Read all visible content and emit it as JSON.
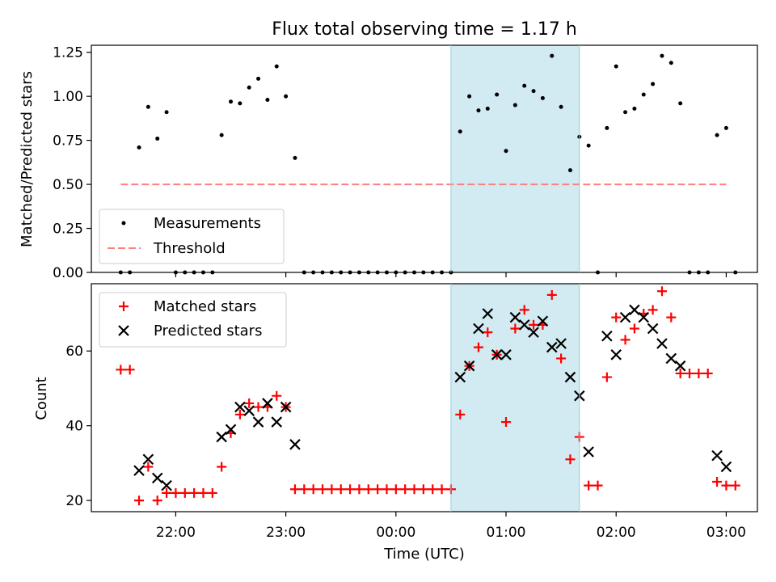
{
  "figure": {
    "title": "Flux total observing time = 1.17 h"
  },
  "colors": {
    "measurements": "#000000",
    "threshold": "#ff7f7f",
    "matched": "#ff0000",
    "predicted": "#000000",
    "highlight": "#add8e6"
  },
  "chart_data": [
    {
      "type": "scatter",
      "panel": "top",
      "title": "Flux total observing time = 1.17 h",
      "xlabel": "",
      "ylabel": "Matched/Predicted stars",
      "xlim": [
        "21:14",
        "03:17"
      ],
      "ylim": [
        0,
        1.29
      ],
      "x_ticks": [
        "22:00",
        "23:00",
        "00:00",
        "01:00",
        "02:00",
        "03:00"
      ],
      "y_ticks": [
        "0.00",
        "0.25",
        "0.50",
        "0.75",
        "1.00",
        "1.25"
      ],
      "highlight_span": [
        "00:30",
        "01:40"
      ],
      "legend": {
        "position": "lower-left",
        "entries": [
          "Measurements",
          "Threshold"
        ]
      },
      "threshold": 0.5,
      "threshold_range": [
        "21:30",
        "03:00"
      ],
      "series": [
        {
          "name": "Measurements",
          "points": [
            [
              "21:30",
              0
            ],
            [
              "21:35",
              0
            ],
            [
              "21:40",
              0.71
            ],
            [
              "21:45",
              0.94
            ],
            [
              "21:50",
              0.76
            ],
            [
              "21:55",
              0.91
            ],
            [
              "22:00",
              0
            ],
            [
              "22:05",
              0
            ],
            [
              "22:10",
              0
            ],
            [
              "22:15",
              0
            ],
            [
              "22:20",
              0
            ],
            [
              "22:25",
              0.78
            ],
            [
              "22:30",
              0.97
            ],
            [
              "22:35",
              0.96
            ],
            [
              "22:40",
              1.05
            ],
            [
              "22:45",
              1.1
            ],
            [
              "22:50",
              0.98
            ],
            [
              "22:55",
              1.17
            ],
            [
              "23:00",
              1.0
            ],
            [
              "23:05",
              0.65
            ],
            [
              "23:10",
              0
            ],
            [
              "23:15",
              0
            ],
            [
              "23:20",
              0
            ],
            [
              "23:25",
              0
            ],
            [
              "23:30",
              0
            ],
            [
              "23:35",
              0
            ],
            [
              "23:40",
              0
            ],
            [
              "23:45",
              0
            ],
            [
              "23:50",
              0
            ],
            [
              "23:55",
              0
            ],
            [
              "00:00",
              0
            ],
            [
              "00:05",
              0
            ],
            [
              "00:10",
              0
            ],
            [
              "00:15",
              0
            ],
            [
              "00:20",
              0
            ],
            [
              "00:25",
              0
            ],
            [
              "00:30",
              0
            ],
            [
              "00:35",
              0.8
            ],
            [
              "00:40",
              1.0
            ],
            [
              "00:45",
              0.92
            ],
            [
              "00:50",
              0.93
            ],
            [
              "00:55",
              1.01
            ],
            [
              "01:00",
              0.69
            ],
            [
              "01:05",
              0.95
            ],
            [
              "01:10",
              1.06
            ],
            [
              "01:15",
              1.03
            ],
            [
              "01:20",
              0.99
            ],
            [
              "01:25",
              1.23
            ],
            [
              "01:30",
              0.94
            ],
            [
              "01:35",
              0.58
            ],
            [
              "01:40",
              0.77
            ],
            [
              "01:45",
              0.72
            ],
            [
              "01:50",
              0
            ],
            [
              "01:55",
              0.82
            ],
            [
              "02:00",
              1.17
            ],
            [
              "02:05",
              0.91
            ],
            [
              "02:10",
              0.93
            ],
            [
              "02:15",
              1.01
            ],
            [
              "02:20",
              1.07
            ],
            [
              "02:25",
              1.23
            ],
            [
              "02:30",
              1.19
            ],
            [
              "02:35",
              0.96
            ],
            [
              "02:40",
              0
            ],
            [
              "02:45",
              0
            ],
            [
              "02:50",
              0
            ],
            [
              "02:55",
              0.78
            ],
            [
              "03:00",
              0.82
            ],
            [
              "03:05",
              0
            ]
          ]
        }
      ]
    },
    {
      "type": "scatter",
      "panel": "bottom",
      "xlabel": "Time (UTC)",
      "ylabel": "Count",
      "xlim": [
        "21:14",
        "03:17"
      ],
      "ylim": [
        17,
        78
      ],
      "x_ticks": [
        "22:00",
        "23:00",
        "00:00",
        "01:00",
        "02:00",
        "03:00"
      ],
      "y_ticks": [
        "20",
        "40",
        "60"
      ],
      "highlight_span": [
        "00:30",
        "01:40"
      ],
      "legend": {
        "position": "top-left",
        "entries": [
          "Matched stars",
          "Predicted stars"
        ]
      },
      "series": [
        {
          "name": "Matched stars",
          "marker": "plus",
          "points": [
            [
              "21:30",
              55
            ],
            [
              "21:35",
              55
            ],
            [
              "21:40",
              20
            ],
            [
              "21:45",
              29
            ],
            [
              "21:50",
              20
            ],
            [
              "21:55",
              22
            ],
            [
              "22:00",
              22
            ],
            [
              "22:05",
              22
            ],
            [
              "22:10",
              22
            ],
            [
              "22:15",
              22
            ],
            [
              "22:20",
              22
            ],
            [
              "22:25",
              29
            ],
            [
              "22:30",
              38
            ],
            [
              "22:35",
              43
            ],
            [
              "22:40",
              46
            ],
            [
              "22:45",
              45
            ],
            [
              "22:50",
              45
            ],
            [
              "22:55",
              48
            ],
            [
              "23:00",
              45
            ],
            [
              "23:05",
              23
            ],
            [
              "23:10",
              23
            ],
            [
              "23:15",
              23
            ],
            [
              "23:20",
              23
            ],
            [
              "23:25",
              23
            ],
            [
              "23:30",
              23
            ],
            [
              "23:35",
              23
            ],
            [
              "23:40",
              23
            ],
            [
              "23:45",
              23
            ],
            [
              "23:50",
              23
            ],
            [
              "23:55",
              23
            ],
            [
              "00:00",
              23
            ],
            [
              "00:05",
              23
            ],
            [
              "00:10",
              23
            ],
            [
              "00:15",
              23
            ],
            [
              "00:20",
              23
            ],
            [
              "00:25",
              23
            ],
            [
              "00:30",
              23
            ],
            [
              "00:35",
              43
            ],
            [
              "00:40",
              56
            ],
            [
              "00:45",
              61
            ],
            [
              "00:50",
              65
            ],
            [
              "00:55",
              59
            ],
            [
              "01:00",
              41
            ],
            [
              "01:05",
              66
            ],
            [
              "01:10",
              71
            ],
            [
              "01:15",
              67
            ],
            [
              "01:20",
              67
            ],
            [
              "01:25",
              75
            ],
            [
              "01:30",
              58
            ],
            [
              "01:35",
              31
            ],
            [
              "01:40",
              37
            ],
            [
              "01:45",
              24
            ],
            [
              "01:50",
              24
            ],
            [
              "01:55",
              53
            ],
            [
              "02:00",
              69
            ],
            [
              "02:05",
              63
            ],
            [
              "02:10",
              66
            ],
            [
              "02:15",
              70
            ],
            [
              "02:20",
              71
            ],
            [
              "02:25",
              76
            ],
            [
              "02:30",
              69
            ],
            [
              "02:35",
              54
            ],
            [
              "02:40",
              54
            ],
            [
              "02:45",
              54
            ],
            [
              "02:50",
              54
            ],
            [
              "02:55",
              25
            ],
            [
              "03:00",
              24
            ],
            [
              "03:05",
              24
            ]
          ]
        },
        {
          "name": "Predicted stars",
          "marker": "x",
          "points": [
            [
              "21:40",
              28
            ],
            [
              "21:45",
              31
            ],
            [
              "21:50",
              26
            ],
            [
              "21:55",
              24
            ],
            [
              "22:25",
              37
            ],
            [
              "22:30",
              39
            ],
            [
              "22:35",
              45
            ],
            [
              "22:40",
              44
            ],
            [
              "22:45",
              41
            ],
            [
              "22:50",
              46
            ],
            [
              "22:55",
              41
            ],
            [
              "23:00",
              45
            ],
            [
              "23:05",
              35
            ],
            [
              "00:35",
              53
            ],
            [
              "00:40",
              56
            ],
            [
              "00:45",
              66
            ],
            [
              "00:50",
              70
            ],
            [
              "00:55",
              59
            ],
            [
              "01:00",
              59
            ],
            [
              "01:05",
              69
            ],
            [
              "01:10",
              67
            ],
            [
              "01:15",
              65
            ],
            [
              "01:20",
              68
            ],
            [
              "01:25",
              61
            ],
            [
              "01:30",
              62
            ],
            [
              "01:35",
              53
            ],
            [
              "01:40",
              48
            ],
            [
              "01:45",
              33
            ],
            [
              "01:55",
              64
            ],
            [
              "02:00",
              59
            ],
            [
              "02:05",
              69
            ],
            [
              "02:10",
              71
            ],
            [
              "02:15",
              69
            ],
            [
              "02:20",
              66
            ],
            [
              "02:25",
              62
            ],
            [
              "02:30",
              58
            ],
            [
              "02:35",
              56
            ],
            [
              "02:55",
              32
            ],
            [
              "03:00",
              29
            ]
          ]
        }
      ]
    }
  ]
}
